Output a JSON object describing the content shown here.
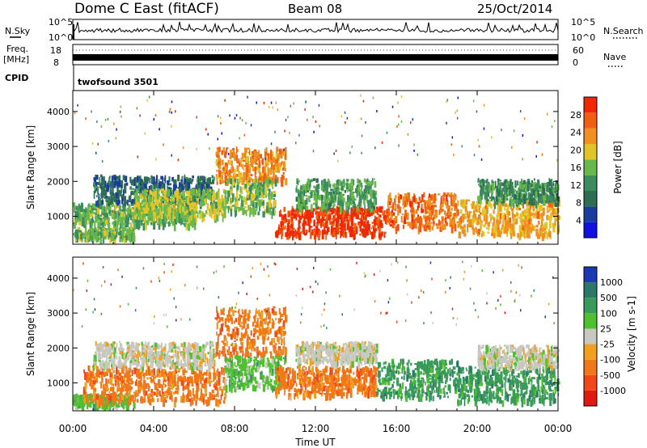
{
  "header": {
    "station": "Dome C East (fitACF)",
    "beam": "Beam 08",
    "date": "25/Oct/2014"
  },
  "top_panels": {
    "nsky_label": "N.Sky",
    "nsearch_label": "N.Search",
    "noise_left_ticks": [
      "10^5",
      "10^0"
    ],
    "noise_right_ticks": [
      "10^5",
      "10^0"
    ],
    "freq_label_line1": "Freq.",
    "freq_label_line2": "[MHz]",
    "freq_ticks": [
      "18",
      "8"
    ],
    "nave_label": "Nave",
    "nave_ticks": [
      "60",
      "0"
    ],
    "cpid_label": "CPID",
    "cpid_value": "twofsound 3501"
  },
  "colors": {
    "power_scale": [
      "#1010e0",
      "#1c3c9c",
      "#2e6e52",
      "#3c8c5e",
      "#68b84c",
      "#e0c428",
      "#f09020",
      "#f06010",
      "#f02800"
    ],
    "velocity_scale": [
      "#e01a10",
      "#f04818",
      "#f07818",
      "#f0a020",
      "#c8c8c0",
      "#50c030",
      "#3a9a5a",
      "#2c7868",
      "#1c3ab0"
    ]
  },
  "chart_data": [
    {
      "type": "heatmap",
      "name": "power",
      "xlabel": "",
      "ylabel": "Slant Range [km]",
      "xlim": [
        0,
        24
      ],
      "ylim": [
        200,
        4600
      ],
      "y_ticks": [
        1000,
        2000,
        3000,
        4000
      ],
      "x_ticks": [
        "00:00",
        "04:00",
        "08:00",
        "12:00",
        "16:00",
        "20:00",
        "00:00"
      ],
      "colorbar": {
        "label": "Power [dB]",
        "range": [
          0,
          32
        ],
        "ticks": [
          4,
          8,
          12,
          16,
          20,
          24,
          28
        ]
      },
      "echo_regions": [
        {
          "t0": 0.0,
          "t1": 3.0,
          "r0": 400,
          "r1": 700,
          "value": 14
        },
        {
          "t0": 0.0,
          "t1": 6.0,
          "r0": 800,
          "r1": 1400,
          "value": 13
        },
        {
          "t0": 1.0,
          "t1": 7.0,
          "r0": 1400,
          "r1": 2200,
          "value": 6
        },
        {
          "t0": 3.0,
          "t1": 7.5,
          "r0": 1000,
          "r1": 1800,
          "value": 16
        },
        {
          "t0": 7.0,
          "t1": 10.5,
          "r0": 2000,
          "r1": 3000,
          "value": 22
        },
        {
          "t0": 7.5,
          "t1": 10.0,
          "r0": 1100,
          "r1": 2100,
          "value": 14
        },
        {
          "t0": 10.0,
          "t1": 15.5,
          "r0": 500,
          "r1": 1300,
          "value": 28
        },
        {
          "t0": 11.0,
          "t1": 15.0,
          "r0": 1300,
          "r1": 2100,
          "value": 12
        },
        {
          "t0": 15.5,
          "t1": 19.0,
          "r0": 700,
          "r1": 1700,
          "value": 24
        },
        {
          "t0": 19.0,
          "t1": 24.0,
          "r0": 500,
          "r1": 1500,
          "value": 20
        },
        {
          "t0": 20.0,
          "t1": 24.0,
          "r0": 1400,
          "r1": 2100,
          "value": 10
        }
      ]
    },
    {
      "type": "heatmap",
      "name": "velocity",
      "xlabel": "Time UT",
      "ylabel": "Slant Range [km]",
      "xlim": [
        0,
        24
      ],
      "ylim": [
        200,
        4600
      ],
      "y_ticks": [
        1000,
        2000,
        3000,
        4000
      ],
      "x_ticks": [
        "00:00",
        "04:00",
        "08:00",
        "12:00",
        "16:00",
        "20:00",
        "00:00"
      ],
      "colorbar": {
        "label": "Velocity [m s-1]",
        "tick_labels": [
          "1000",
          "500",
          "100",
          "25",
          "-25",
          "-100",
          "-500",
          "-1000"
        ]
      },
      "echo_regions": [
        {
          "t0": 0.0,
          "t1": 3.0,
          "r0": 400,
          "r1": 700,
          "value": 100
        },
        {
          "t0": 0.5,
          "t1": 7.5,
          "r0": 500,
          "r1": 1500,
          "value": -200
        },
        {
          "t0": 1.0,
          "t1": 7.0,
          "r0": 1500,
          "r1": 2200,
          "value": -10
        },
        {
          "t0": 7.0,
          "t1": 10.5,
          "r0": 1800,
          "r1": 3200,
          "value": -200
        },
        {
          "t0": 7.5,
          "t1": 10.5,
          "r0": 900,
          "r1": 1800,
          "value": 80
        },
        {
          "t0": 10.0,
          "t1": 15.0,
          "r0": 700,
          "r1": 1500,
          "value": -200
        },
        {
          "t0": 11.0,
          "t1": 15.0,
          "r0": 1600,
          "r1": 2200,
          "value": -10
        },
        {
          "t0": 15.0,
          "t1": 19.0,
          "r0": 600,
          "r1": 1700,
          "value": 300
        },
        {
          "t0": 19.0,
          "t1": 24.0,
          "r0": 500,
          "r1": 1500,
          "value": 200
        },
        {
          "t0": 20.0,
          "t1": 24.0,
          "r0": 1500,
          "r1": 2100,
          "value": 0
        }
      ]
    }
  ]
}
